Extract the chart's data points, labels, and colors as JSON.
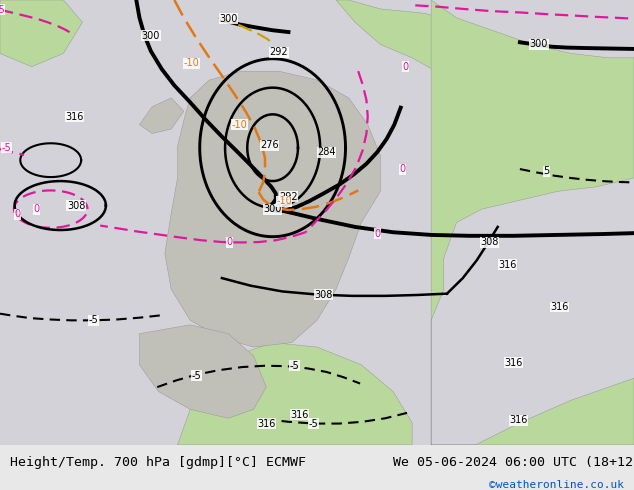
{
  "title_left": "Height/Temp. 700 hPa [gdmp][°C] ECMWF",
  "title_right": "We 05-06-2024 06:00 UTC (18+12)",
  "copyright": "©weatheronline.co.uk",
  "fig_width": 6.34,
  "fig_height": 4.9,
  "dpi": 100,
  "bg_ocean": "#d2d2d8",
  "bg_land_gray": "#c0c0b8",
  "bg_land_green": "#b8d89c",
  "bottom_bar_color": "#e8e8e8",
  "title_fontsize": 9.5,
  "copyright_fontsize": 8,
  "copyright_color": "#0055cc",
  "black_contour_lw": 1.8,
  "thick_contour_lw": 2.8,
  "orange_lw": 1.8,
  "pink_lw": 1.6
}
